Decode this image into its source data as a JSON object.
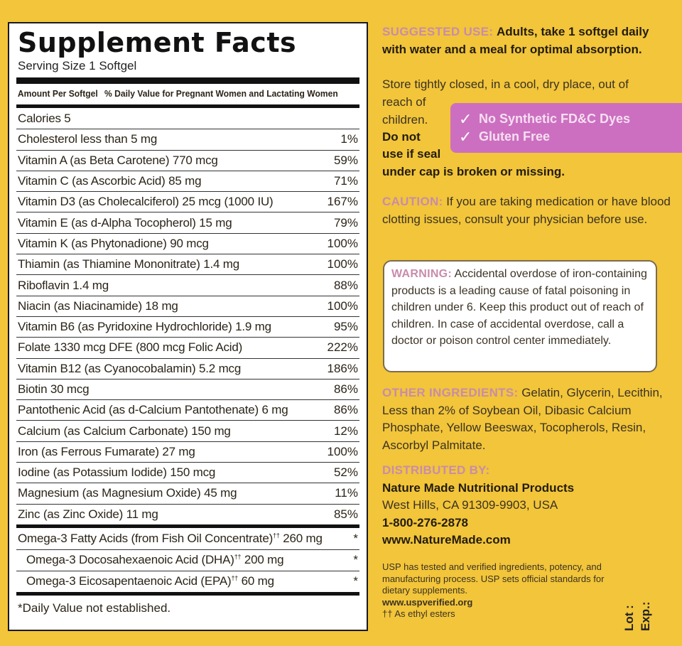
{
  "facts": {
    "title": "Supplement Facts",
    "serving": "Serving Size 1 Softgel",
    "header_amount": "Amount Per Softgel",
    "header_dv": "% Daily Value for Pregnant Women and Lactating Women",
    "rows": [
      {
        "name": "Calories 5",
        "dv": ""
      },
      {
        "name": "Cholesterol  less than 5 mg",
        "dv": "1%"
      },
      {
        "name": "Vitamin A (as Beta Carotene)  770 mcg",
        "dv": "59%"
      },
      {
        "name": "Vitamin C (as Ascorbic Acid)  85 mg",
        "dv": "71%"
      },
      {
        "name": "Vitamin D3 (as Cholecalciferol)  25 mcg (1000 IU)",
        "dv": "167%"
      },
      {
        "name": "Vitamin E (as d-Alpha Tocopherol)  15 mg",
        "dv": "79%"
      },
      {
        "name": "Vitamin K (as Phytonadione)  90 mcg",
        "dv": "100%"
      },
      {
        "name": "Thiamin (as Thiamine Mononitrate)  1.4 mg",
        "dv": "100%"
      },
      {
        "name": "Riboflavin  1.4 mg",
        "dv": "88%"
      },
      {
        "name": "Niacin (as Niacinamide)  18 mg",
        "dv": "100%"
      },
      {
        "name": "Vitamin B6 (as Pyridoxine Hydrochloride)  1.9 mg",
        "dv": "95%"
      },
      {
        "name": "Folate  1330 mcg DFE (800 mcg Folic Acid)",
        "dv": "222%"
      },
      {
        "name": "Vitamin B12 (as Cyanocobalamin)  5.2 mcg",
        "dv": "186%"
      },
      {
        "name": "Biotin  30 mcg",
        "dv": "86%"
      },
      {
        "name": "Pantothenic Acid (as d-Calcium Pantothenate)  6 mg",
        "dv": "86%"
      },
      {
        "name": "Calcium (as Calcium Carbonate)  150 mg",
        "dv": "12%"
      },
      {
        "name": "Iron (as Ferrous Fumarate)  27 mg",
        "dv": "100%"
      },
      {
        "name": "Iodine (as Potassium Iodide)  150 mcg",
        "dv": "52%"
      },
      {
        "name": "Magnesium (as Magnesium Oxide)  45 mg",
        "dv": "11%"
      },
      {
        "name": "Zinc (as Zinc Oxide)  11 mg",
        "dv": "85%"
      }
    ],
    "omega": [
      {
        "name": "Omega-3 Fatty Acids (from Fish Oil Concentrate)",
        "mark": "††",
        "amount": "260 mg",
        "dv": "*"
      },
      {
        "name": "Omega-3 Docosahexaenoic Acid (DHA)",
        "mark": "††",
        "amount": "200 mg",
        "dv": "*"
      },
      {
        "name": "Omega-3 Eicosapentaenoic Acid (EPA)",
        "mark": "††",
        "amount": "60 mg",
        "dv": "*"
      }
    ],
    "footnote": "*Daily Value not established."
  },
  "use": {
    "label": "SUGGESTED USE:",
    "text": "Adults, take 1 softgel daily with water and a meal for optimal absorption."
  },
  "storage": {
    "line1": "Store tightly closed, in a cool, dry place, out of",
    "line2a": "reach of",
    "line2b": "children.",
    "line3a": "Do not",
    "line3b": "use if seal",
    "line4": "under cap is broken or missing."
  },
  "badge": {
    "item1": "No Synthetic FD&C Dyes",
    "item2": "Gluten Free",
    "check": "✓"
  },
  "caution": {
    "label": "CAUTION:",
    "text": "If you are taking medication or have blood clotting issues, consult your physician before use."
  },
  "warning": {
    "label": "WARNING:",
    "text": "Accidental overdose of iron-containing products is a leading cause of fatal poisoning in children under 6. Keep this product out of reach of children. In case of accidental overdose, call a doctor or poison control center immediately."
  },
  "other": {
    "label": "OTHER INGREDIENTS:",
    "text": "Gelatin, Glycerin, Lecithin, Less than 2% of Soybean Oil, Dibasic Calcium Phosphate, Yellow Beeswax, Tocopherols, Resin, Ascorbyl Palmitate."
  },
  "dist": {
    "label": "DISTRIBUTED BY:",
    "company": "Nature Made Nutritional Products",
    "address": "West Hills, CA 91309-9903, USA",
    "phone": "1-800-276-2878",
    "web": "www.NatureMade.com"
  },
  "usp": {
    "text": "USP has tested and verified ingredients, potency, and manufacturing process. USP sets official standards for dietary supplements.",
    "web": "www.uspverified.org",
    "note": "†† As ethyl esters"
  },
  "lot": {
    "lot": "Lot :",
    "exp": "Exp.:"
  },
  "colors": {
    "background": "#f2c53a",
    "label_pink": "#c98cab",
    "badge": "#cc6fc1"
  }
}
